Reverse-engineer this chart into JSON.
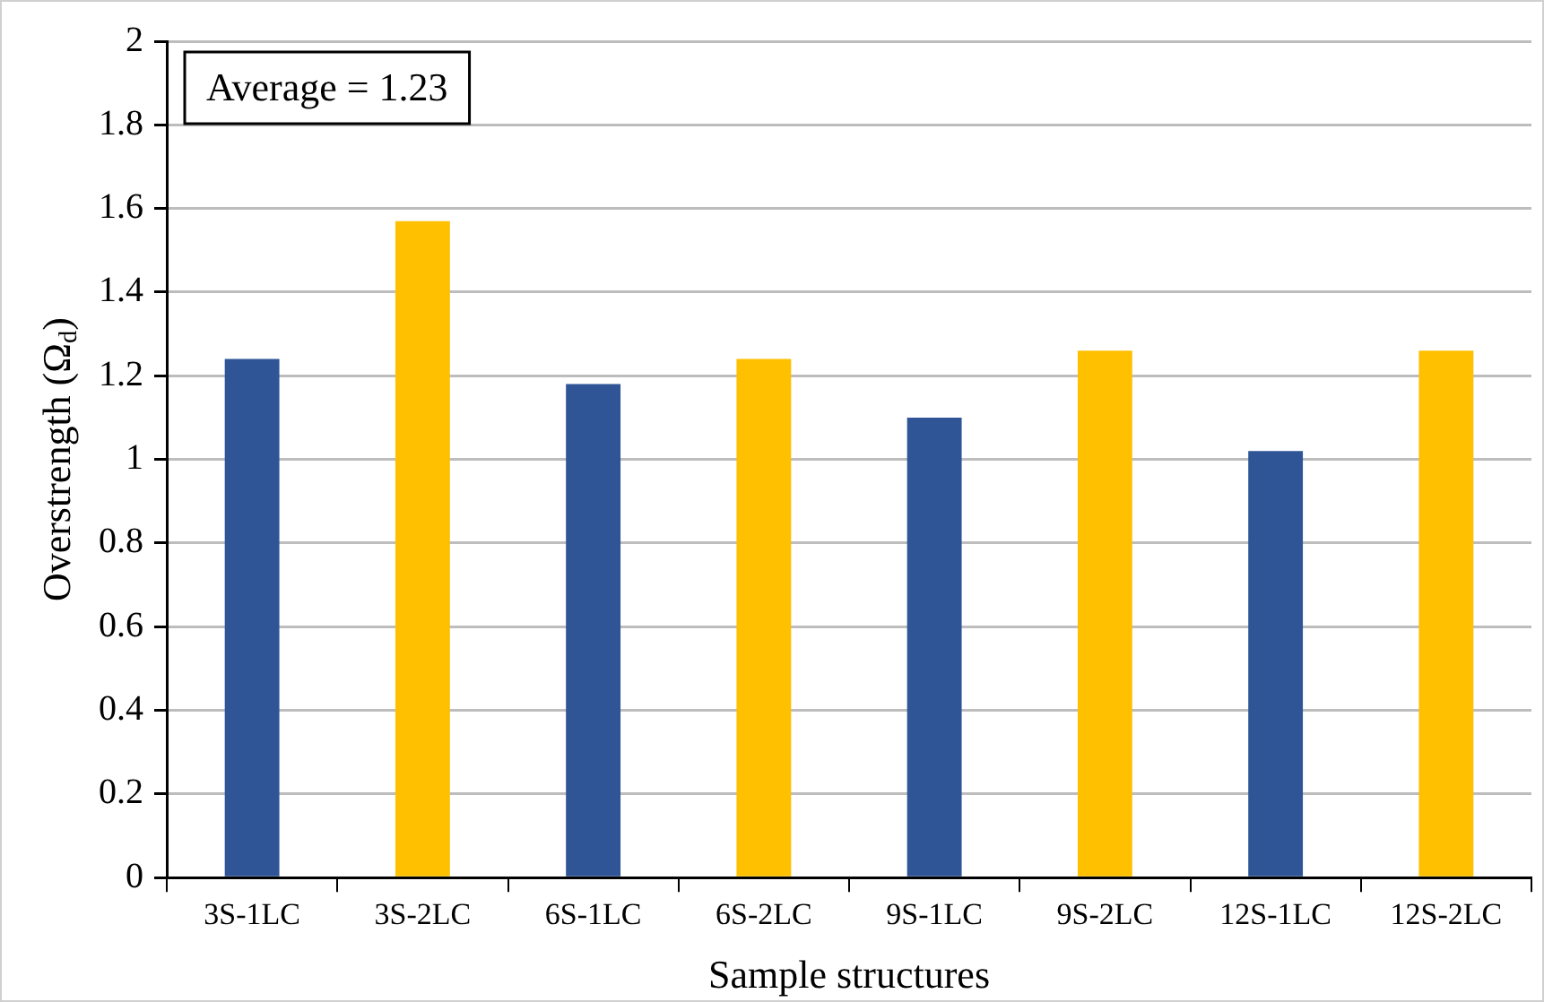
{
  "chart_data": {
    "type": "bar",
    "xlabel": "Sample structures",
    "ylabel": "Overstrength (Ω$_{d}$)",
    "categories": [
      "3S-1LC",
      "3S-2LC",
      "6S-1LC",
      "6S-2LC",
      "9S-1LC",
      "9S-2LC",
      "12S-1LC",
      "12S-2LC"
    ],
    "values": [
      1.24,
      1.57,
      1.18,
      1.24,
      1.1,
      1.26,
      1.02,
      1.26
    ],
    "colors": [
      "#2f5597",
      "#ffc000",
      "#2f5597",
      "#ffc000",
      "#2f5597",
      "#ffc000",
      "#2f5597",
      "#ffc000"
    ],
    "ylim": [
      0,
      2
    ],
    "yticks": [
      0,
      0.2,
      0.4,
      0.6,
      0.8,
      1,
      1.2,
      1.4,
      1.6,
      1.8,
      2
    ],
    "annotations": [
      "Average = 1.23"
    ],
    "grid": "y",
    "legend": false
  }
}
